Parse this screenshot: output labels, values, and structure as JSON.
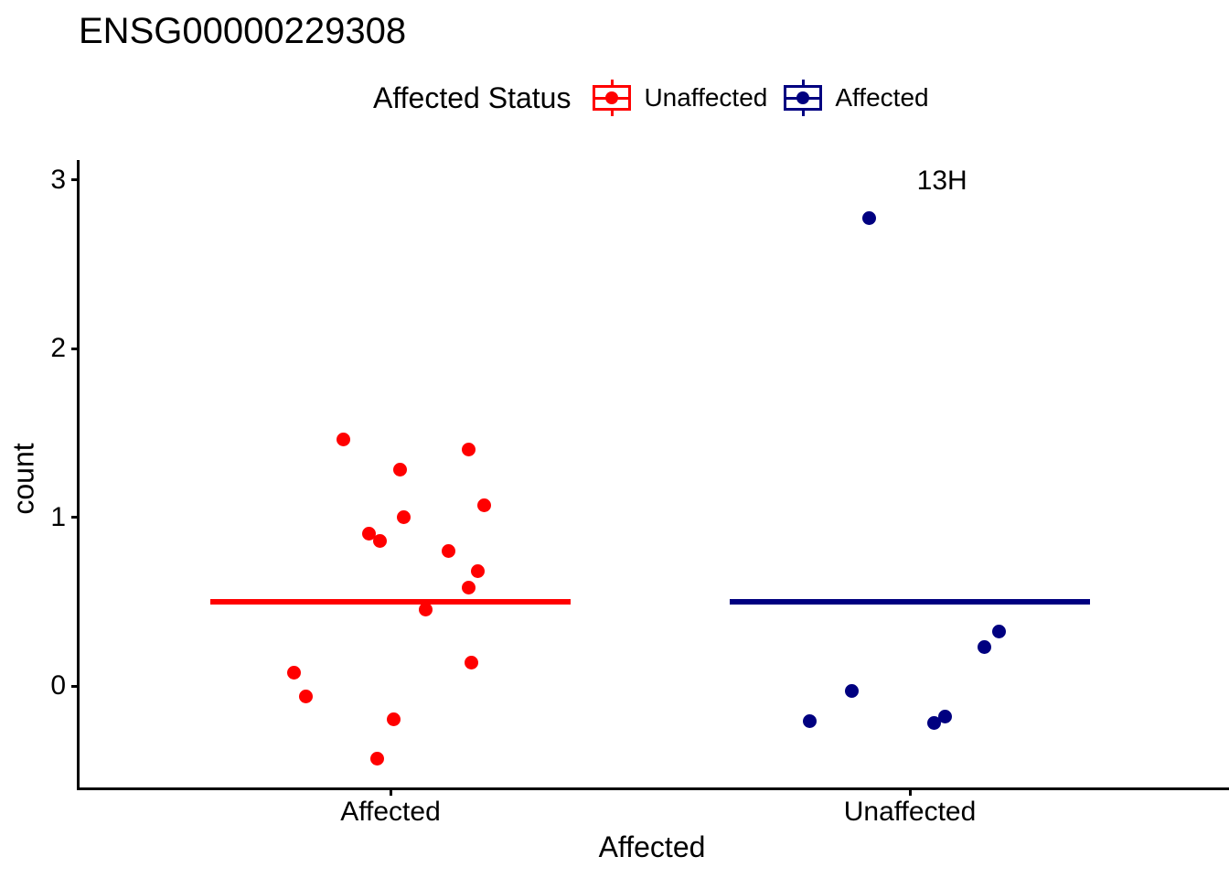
{
  "title": "ENSG00000229308",
  "legend": {
    "title": "Affected Status",
    "entries": [
      {
        "label": "Unaffected",
        "color": "#FF0000"
      },
      {
        "label": "Affected",
        "color": "#000080"
      }
    ]
  },
  "axes": {
    "x": {
      "title": "Affected",
      "categories": [
        "Affected",
        "Unaffected"
      ]
    },
    "y": {
      "title": "count",
      "ticks": [
        0,
        1,
        2,
        3
      ]
    }
  },
  "chart_data": {
    "type": "scatter",
    "subtype": "jittered points with mean crossbar per category",
    "title": "ENSG00000229308",
    "xlabel": "Affected",
    "ylabel": "count",
    "ylim": [
      -0.55,
      3.05
    ],
    "yticks": [
      0,
      1,
      2,
      3
    ],
    "categories": [
      "Affected",
      "Unaffected"
    ],
    "legend_title": "Affected Status",
    "legend_position": "top",
    "grid": false,
    "series": [
      {
        "name": "Affected",
        "legend_label": "Unaffected",
        "color": "#FF0000",
        "crossbar_y": 0.5,
        "points": [
          {
            "jitter": -0.09,
            "y": 1.46
          },
          {
            "jitter": 0.151,
            "y": 1.4
          },
          {
            "jitter": 0.018,
            "y": 1.28
          },
          {
            "jitter": 0.18,
            "y": 1.07
          },
          {
            "jitter": 0.025,
            "y": 1.0
          },
          {
            "jitter": -0.042,
            "y": 0.9
          },
          {
            "jitter": -0.021,
            "y": 0.86
          },
          {
            "jitter": 0.111,
            "y": 0.8
          },
          {
            "jitter": 0.169,
            "y": 0.68
          },
          {
            "jitter": 0.15,
            "y": 0.58
          },
          {
            "jitter": 0.067,
            "y": 0.45
          },
          {
            "jitter": 0.155,
            "y": 0.14
          },
          {
            "jitter": -0.185,
            "y": 0.08
          },
          {
            "jitter": -0.162,
            "y": -0.06
          },
          {
            "jitter": 0.007,
            "y": -0.2
          },
          {
            "jitter": -0.025,
            "y": -0.43
          }
        ]
      },
      {
        "name": "Unaffected",
        "legend_label": "Affected",
        "color": "#000080",
        "crossbar_y": 0.5,
        "points": [
          {
            "jitter": -0.079,
            "y": 2.77
          },
          {
            "jitter": 0.171,
            "y": 0.32
          },
          {
            "jitter": 0.144,
            "y": 0.23
          },
          {
            "jitter": -0.111,
            "y": -0.03
          },
          {
            "jitter": 0.067,
            "y": -0.18
          },
          {
            "jitter": 0.046,
            "y": -0.22
          },
          {
            "jitter": -0.192,
            "y": -0.21
          }
        ]
      }
    ],
    "annotations": [
      {
        "text": "13H",
        "category_index": 1,
        "jitter": 0.062,
        "y": 2.99
      }
    ]
  }
}
